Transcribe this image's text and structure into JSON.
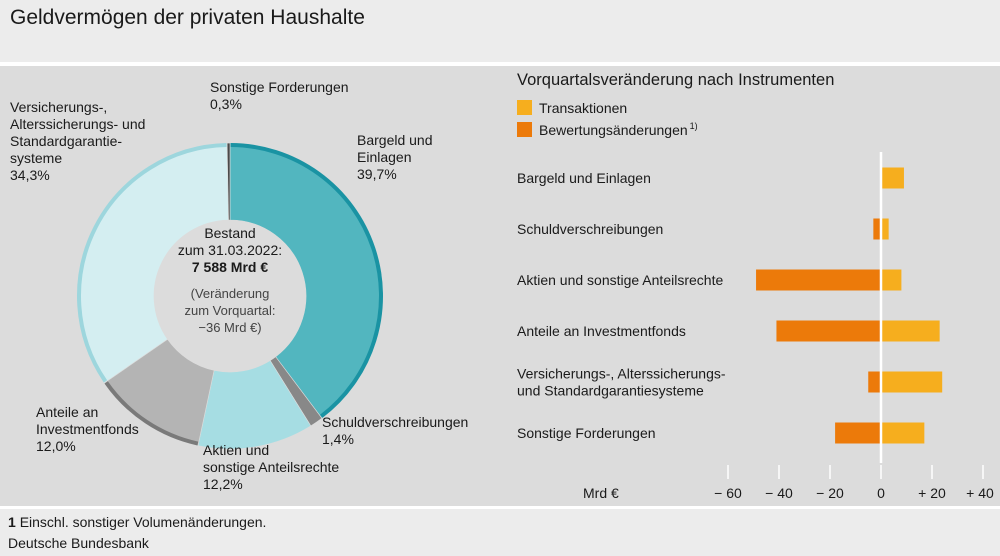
{
  "title": "Geldvermögen der privaten Haushalte",
  "footnote_number": "1",
  "footnote_text": "Einschl. sonstiger Volumenänderungen.",
  "source": "Deutsche Bundesbank",
  "colors": {
    "bargeld": "#52b6bf",
    "bargeld_edge": "#1a93a3",
    "schuld": "#888888",
    "aktien": "#a6dde3",
    "anteile": "#b4b4b4",
    "anteile_edge": "#7a7a7a",
    "versicherung": "#d4eef1",
    "versicherung_edge": "#9dd6dd",
    "sonstige": "#4a4a4a",
    "transaktionen": "#f6ae1e",
    "bewertung": "#ec7a0a"
  },
  "chart_data": [
    {
      "type": "pie",
      "variant": "donut",
      "center": {
        "line1": "Bestand",
        "line2": "zum 31.03.2022:",
        "line3": "7 588 Mrd €",
        "line4": "(Veränderung",
        "line5": "zum Vorquartal:",
        "line6": "−36 Mrd €)"
      },
      "slices": [
        {
          "key": "bargeld",
          "label_lines": [
            "Bargeld und",
            "Einlagen"
          ],
          "value": 39.7,
          "value_label": "39,7%"
        },
        {
          "key": "schuld",
          "label_lines": [
            "Schuldverschreibungen"
          ],
          "value": 1.4,
          "value_label": "1,4%"
        },
        {
          "key": "aktien",
          "label_lines": [
            "Aktien und",
            "sonstige Anteilsrechte"
          ],
          "value": 12.2,
          "value_label": "12,2%"
        },
        {
          "key": "anteile",
          "label_lines": [
            "Anteile an",
            "Investmentfonds"
          ],
          "value": 12.0,
          "value_label": "12,0%"
        },
        {
          "key": "versicherung",
          "label_lines": [
            "Versicherungs-,",
            "Alterssicherungs- und",
            "Standardgarantie-",
            "systeme"
          ],
          "value": 34.3,
          "value_label": "34,3%"
        },
        {
          "key": "sonstige",
          "label_lines": [
            "Sonstige Forderungen"
          ],
          "value": 0.3,
          "value_label": "0,3%"
        }
      ]
    },
    {
      "type": "bar",
      "orientation": "horizontal",
      "stacked": "diverging",
      "title": "Vorquartalsveränderung nach Instrumenten",
      "unit": "Mrd €",
      "xlim": [
        -60,
        40
      ],
      "ticks": [
        -60,
        -40,
        -20,
        0,
        20,
        40
      ],
      "tick_labels": [
        "− 60",
        "− 40",
        "− 20",
        "0",
        "+ 20",
        "+ 40"
      ],
      "legend": [
        {
          "key": "transaktionen",
          "label": "Transaktionen",
          "sup": ""
        },
        {
          "key": "bewertung",
          "label": "Bewertungsänderungen",
          "sup": "1)"
        }
      ],
      "categories": [
        [
          "Bargeld und Einlagen"
        ],
        [
          "Schuldverschreibungen"
        ],
        [
          "Aktien und sonstige Anteilsrechte"
        ],
        [
          "Anteile an Investmentfonds"
        ],
        [
          "Versicherungs-, Alterssicherungs-",
          "und Standardgarantiesysteme"
        ],
        [
          "Sonstige Forderungen"
        ]
      ],
      "series": [
        {
          "name": "Transaktionen",
          "key": "transaktionen",
          "values": [
            9,
            3,
            8,
            23,
            24,
            17
          ]
        },
        {
          "name": "Bewertungsänderungen",
          "key": "bewertung",
          "values": [
            0,
            -3,
            -49,
            -41,
            -5,
            -18
          ]
        }
      ]
    }
  ]
}
